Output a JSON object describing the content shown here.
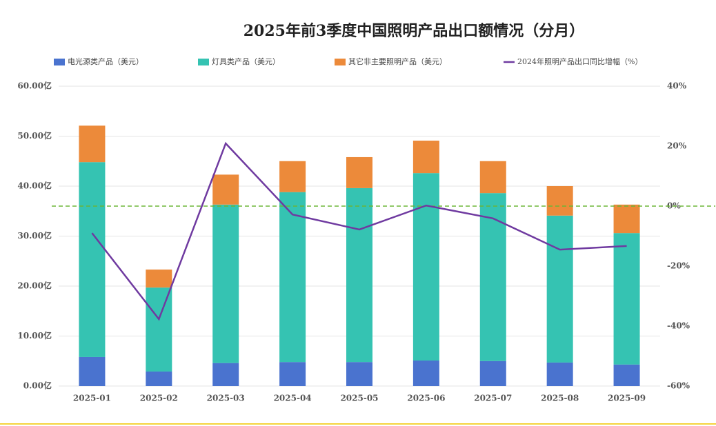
{
  "chart_data": {
    "type": "bar",
    "stacked": true,
    "title": "2025年前3季度中国照明产品出口额情况（分月）",
    "categories": [
      "2025-01",
      "2025-02",
      "2025-03",
      "2025-04",
      "2025-05",
      "2025-06",
      "2025-07",
      "2025-08",
      "2025-09"
    ],
    "series": [
      {
        "name": "电光源类产品（美元）",
        "color": "#4a73cf",
        "values": [
          5.8,
          2.9,
          4.6,
          4.8,
          4.8,
          5.1,
          5.0,
          4.7,
          4.3
        ]
      },
      {
        "name": "灯具类产品（美元）",
        "color": "#35c3b2",
        "values": [
          39.0,
          16.8,
          31.7,
          34.0,
          34.8,
          37.5,
          33.6,
          29.4,
          26.3
        ]
      },
      {
        "name": "其它非主要照明产品（美元）",
        "color": "#ec8a3a",
        "values": [
          7.3,
          3.6,
          6.0,
          6.2,
          6.2,
          6.5,
          6.4,
          5.9,
          5.7
        ]
      },
      {
        "name": "2024年照明产品出口同比增幅（%）",
        "type": "line",
        "axis": "y2",
        "color": "#6f3aa0",
        "values": [
          -9.0,
          -37.7,
          20.9,
          -2.8,
          -7.8,
          0.2,
          -4.1,
          -14.5,
          -13.3
        ]
      }
    ],
    "ylim": [
      0,
      60
    ],
    "yticks": [
      {
        "value": 0,
        "label": "0.00亿"
      },
      {
        "value": 10,
        "label": "10.00亿"
      },
      {
        "value": 20,
        "label": "20.00亿"
      },
      {
        "value": 30,
        "label": "30.00亿"
      },
      {
        "value": 40,
        "label": "40.00亿"
      },
      {
        "value": 50,
        "label": "50.00亿"
      },
      {
        "value": 60,
        "label": "60.00亿"
      }
    ],
    "y2lim": [
      -60,
      40
    ],
    "y2ticks": [
      {
        "value": -60,
        "label": "-60%"
      },
      {
        "value": -40,
        "label": "-40%"
      },
      {
        "value": -20,
        "label": "-20%"
      },
      {
        "value": 0,
        "label": "0%"
      },
      {
        "value": 20,
        "label": "20%"
      },
      {
        "value": 40,
        "label": "40%"
      }
    ],
    "reference_line": {
      "axis": "y2",
      "value": 0,
      "color": "#6bb536"
    },
    "grid": true,
    "legend": "top"
  }
}
